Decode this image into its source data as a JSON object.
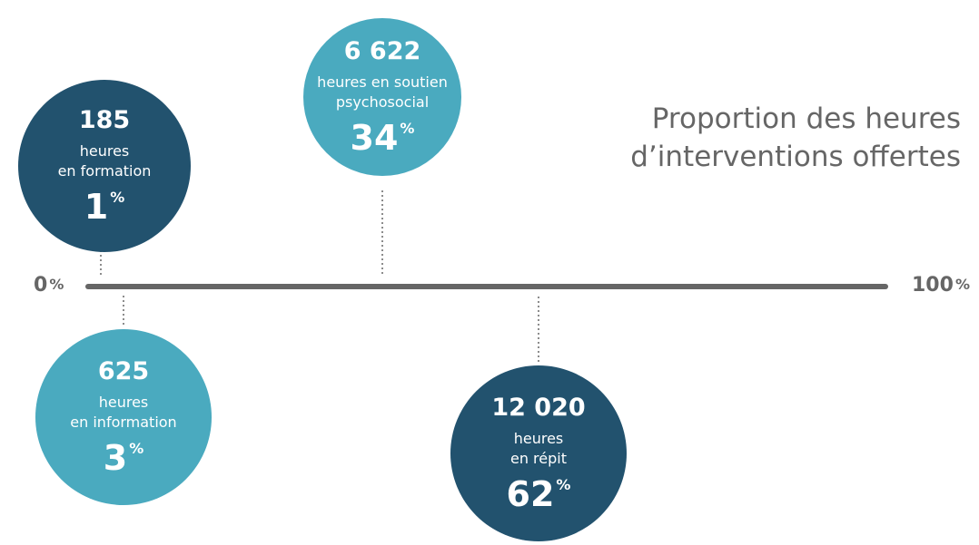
{
  "title": [
    "Proportion des heures",
    "d’interventions offertes"
  ],
  "axis": {
    "start": "0",
    "start_unit": "%",
    "end": "100",
    "end_unit": "%"
  },
  "items": [
    {
      "hours": "185",
      "label": [
        "heures",
        "en formation"
      ],
      "percent": "1",
      "unit": "%"
    },
    {
      "hours": "6 622",
      "label": [
        "heures en soutien",
        "psychosocial"
      ],
      "percent": "34",
      "unit": "%"
    },
    {
      "hours": "625",
      "label": [
        "heures",
        "en information"
      ],
      "percent": "3",
      "unit": "%"
    },
    {
      "hours": "12 020",
      "label": [
        "heures",
        "en répit"
      ],
      "percent": "62",
      "unit": "%"
    }
  ]
}
